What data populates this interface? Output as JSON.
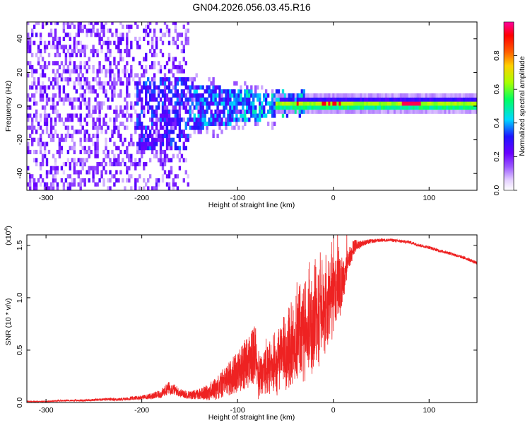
{
  "title": "GN04.2026.056.03.45.R16",
  "colorbar": {
    "label": "Normalized spectral amplitude",
    "ticks": [
      0.0,
      0.2,
      0.4,
      0.6,
      0.8
    ],
    "tick_labels": [
      "0.0",
      "0.2",
      "0.4",
      "0.6",
      "0.8"
    ],
    "range": [
      0,
      1
    ],
    "colors": [
      "#ffffff",
      "#e4d0ff",
      "#9b58ff",
      "#6a00ff",
      "#1e14ff",
      "#00d8ff",
      "#00ff60",
      "#a8ff00",
      "#ffd000",
      "#ff6000",
      "#ff0000",
      "#ff00a0"
    ]
  },
  "chart_data": [
    {
      "type": "heatmap",
      "xlabel": "Height of straight line (km)",
      "ylabel": "Frequency (Hz)",
      "xlim": [
        -320,
        150
      ],
      "ylim": [
        -50,
        50
      ],
      "xticks": [
        -300,
        -200,
        -100,
        0,
        100
      ],
      "xtick_labels": [
        "-300",
        "-200",
        "-100",
        "0",
        "100"
      ],
      "yticks": [
        -40,
        -20,
        0,
        20,
        40
      ],
      "ytick_labels": [
        "-40",
        "-20",
        "0",
        "20",
        "40"
      ],
      "regions": [
        {
          "name": "noise",
          "x": [
            -320,
            -150
          ],
          "freq": [
            -50,
            50
          ],
          "amplitude": 0.1
        },
        {
          "name": "onset",
          "x": [
            -200,
            -150
          ],
          "freq": [
            -27,
            17
          ],
          "amplitude": 0.3
        },
        {
          "name": "transition",
          "x": [
            -150,
            -60
          ],
          "freq": [
            -15,
            10
          ],
          "amplitude": 0.4
        },
        {
          "name": "main-band",
          "x": [
            -60,
            150
          ],
          "freq": [
            -4,
            4
          ],
          "amplitude": 0.65
        },
        {
          "name": "peak-1",
          "x": [
            -40,
            10
          ],
          "freq": [
            -1,
            2
          ],
          "amplitude": 0.95
        },
        {
          "name": "peak-2",
          "x": [
            70,
            95
          ],
          "freq": [
            0,
            3
          ],
          "amplitude": 0.95
        }
      ]
    },
    {
      "type": "line",
      "xlabel": "Height of straight line (km)",
      "ylabel": "SNR (10 * v/v)",
      "multiplier_label": "(x10",
      "multiplier_exp": "4",
      "xlim": [
        -320,
        150
      ],
      "ylim": [
        0,
        1.6
      ],
      "xticks": [
        -300,
        -200,
        -100,
        0,
        100
      ],
      "xtick_labels": [
        "-300",
        "-200",
        "-100",
        "0",
        "100"
      ],
      "yticks": [
        0.0,
        0.5,
        1.0,
        1.5
      ],
      "ytick_labels": [
        "0.0",
        "0.5",
        "1.0",
        "1.5"
      ],
      "color": "#ee2222",
      "series": [
        {
          "name": "SNR",
          "x": [
            -320,
            -300,
            -280,
            -260,
            -240,
            -220,
            -200,
            -190,
            -180,
            -172,
            -165,
            -160,
            -150,
            -140,
            -130,
            -120,
            -110,
            -100,
            -90,
            -80,
            -70,
            -60,
            -50,
            -40,
            -30,
            -20,
            -10,
            0,
            5,
            10,
            15,
            20,
            25,
            30,
            40,
            50,
            60,
            70,
            80,
            90,
            100,
            110,
            120,
            130,
            140,
            150
          ],
          "values": [
            0.01,
            0.01,
            0.02,
            0.02,
            0.03,
            0.03,
            0.05,
            0.06,
            0.08,
            0.14,
            0.12,
            0.09,
            0.07,
            0.08,
            0.1,
            0.15,
            0.22,
            0.3,
            0.38,
            0.46,
            0.55,
            0.65,
            0.78,
            0.9,
            1.02,
            1.1,
            1.2,
            1.3,
            1.35,
            1.38,
            1.45,
            1.48,
            1.5,
            1.52,
            1.54,
            1.55,
            1.55,
            1.54,
            1.53,
            1.5,
            1.48,
            1.45,
            1.43,
            1.4,
            1.37,
            1.33
          ],
          "noise": [
            0.005,
            0.006,
            0.008,
            0.01,
            0.012,
            0.014,
            0.02,
            0.03,
            0.04,
            0.06,
            0.05,
            0.04,
            0.04,
            0.05,
            0.08,
            0.12,
            0.16,
            0.2,
            0.25,
            0.3,
            0.35,
            0.4,
            0.45,
            0.5,
            0.55,
            0.55,
            0.5,
            0.45,
            0.4,
            0.35,
            0.15,
            0.08,
            0.05,
            0.03,
            0.02,
            0.015,
            0.015,
            0.015,
            0.015,
            0.015,
            0.015,
            0.015,
            0.015,
            0.015,
            0.015,
            0.015
          ]
        }
      ]
    }
  ]
}
